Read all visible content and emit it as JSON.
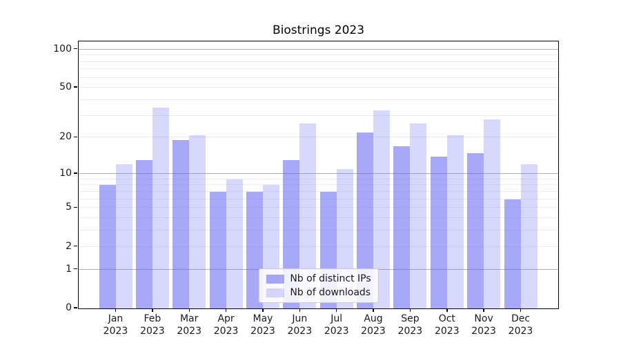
{
  "title": "Biostrings 2023",
  "chart_data": {
    "type": "bar",
    "title": "Biostrings 2023",
    "categories": [
      "Jan 2023",
      "Feb 2023",
      "Mar 2023",
      "Apr 2023",
      "May 2023",
      "Jun 2023",
      "Jul 2023",
      "Aug 2023",
      "Sep 2023",
      "Oct 2023",
      "Nov 2023",
      "Dec 2023"
    ],
    "series": [
      {
        "name": "Nb of distinct IPs",
        "color": "#a8a8f8",
        "fill": "rgba(100,100,245,0.56)",
        "values": [
          8,
          13,
          19,
          7,
          7,
          13,
          7,
          22,
          17,
          14,
          15,
          6
        ]
      },
      {
        "name": "Nb of downloads",
        "color": "#d8d8f8",
        "fill": "rgba(100,100,245,0.25)",
        "values": [
          12,
          35,
          21,
          9,
          8,
          26,
          11,
          33,
          26,
          21,
          28,
          12
        ]
      }
    ],
    "xlabel": "",
    "ylabel": "",
    "yscale": "log1p",
    "ylim": [
      0,
      114
    ],
    "yticks": [
      100,
      50,
      20,
      10,
      5,
      2,
      1,
      0
    ],
    "gridlines_major": [
      1,
      10,
      100
    ],
    "gridlines_minor": [
      2,
      3,
      4,
      5,
      6,
      7,
      8,
      9,
      20,
      30,
      40,
      50,
      60,
      70,
      80,
      90
    ],
    "grid": true,
    "legend_position": "lower center"
  },
  "colors": {
    "major_grid": "#b0b0b0",
    "minor_grid": "#ececec",
    "axis_frame": "#000000",
    "legend_border": "#cccccc"
  }
}
